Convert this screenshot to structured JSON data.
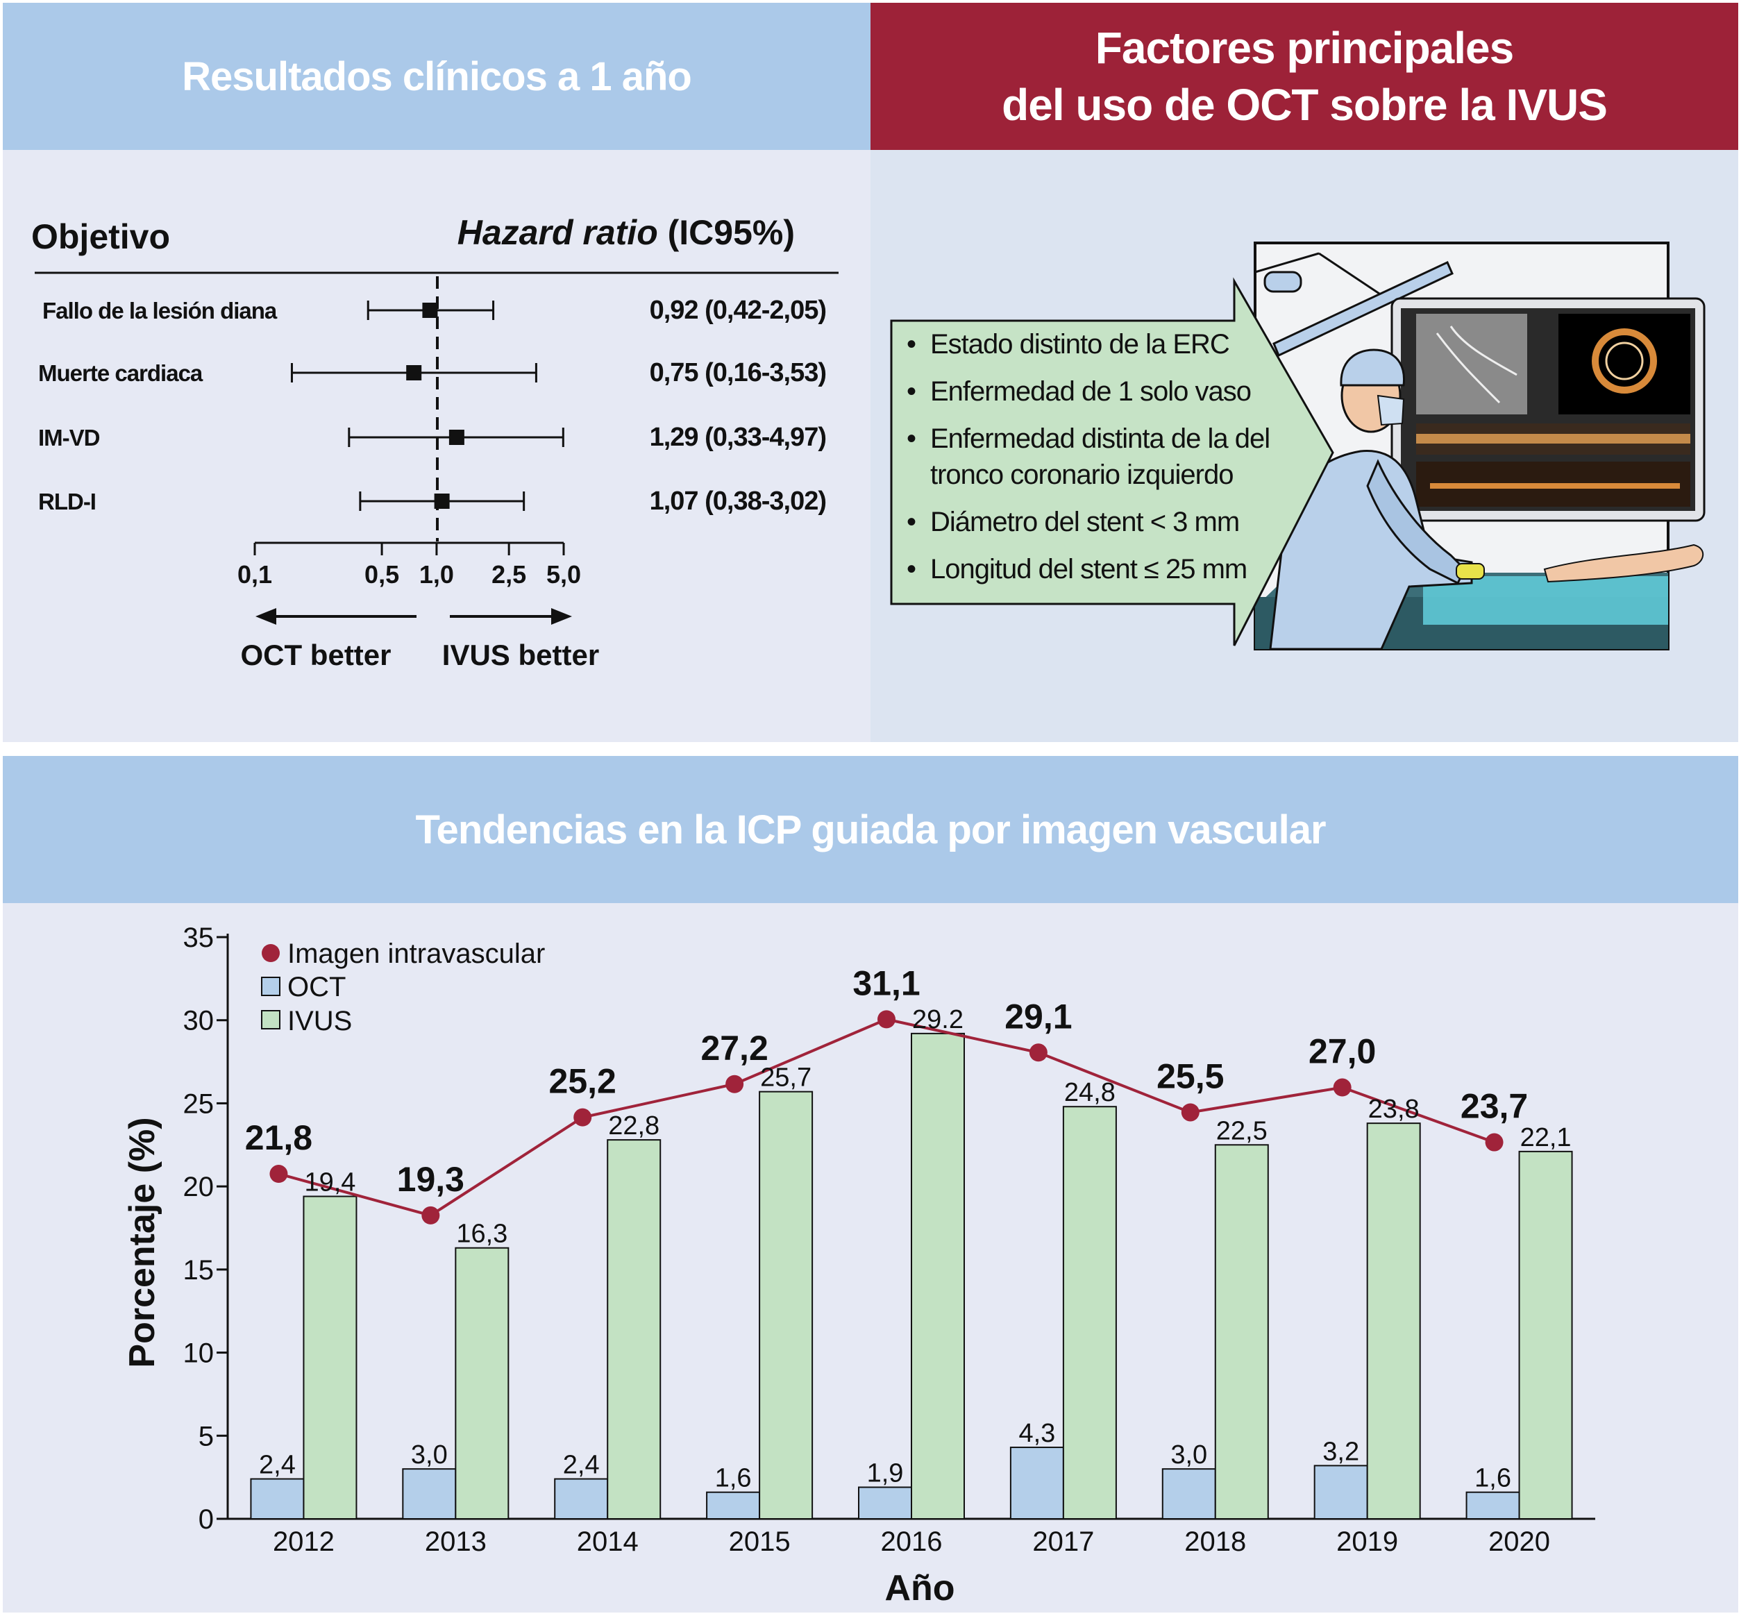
{
  "panels": {
    "top_left_title": "Resultados clínicos a 1 año",
    "top_right_title_line1": "Factores principales",
    "top_right_title_line2": "del uso de OCT sobre la IVUS",
    "bottom_title": "Tendencias en la ICP guiada por imagen vascular"
  },
  "forest": {
    "col_endpoint": "Objetivo",
    "col_hr_italic": "Hazard ratio",
    "col_hr_rest": " (IC95%)",
    "rows": [
      {
        "label": "Fallo de la lesión diana",
        "hr": 0.92,
        "lo": 0.42,
        "hi": 2.05,
        "text": "0,92 (0,42-2,05)"
      },
      {
        "label": "Muerte cardiaca",
        "hr": 0.75,
        "lo": 0.16,
        "hi": 3.53,
        "text": "0,75 (0,16-3,53)"
      },
      {
        "label": "IM-VD",
        "hr": 1.29,
        "lo": 0.33,
        "hi": 4.97,
        "text": "1,29 (0,33-4,97)"
      },
      {
        "label": "RLD-I",
        "hr": 1.07,
        "lo": 0.38,
        "hi": 3.02,
        "text": "1,07 (0,38-3,02)"
      }
    ],
    "axis_ticks": [
      {
        "value": 0.1,
        "label": "0,1"
      },
      {
        "value": 0.5,
        "label": "0,5"
      },
      {
        "value": 1.0,
        "label": "1,0"
      },
      {
        "value": 2.5,
        "label": "2,5"
      },
      {
        "value": 5.0,
        "label": "5,0"
      }
    ],
    "axis_scale": "log",
    "left_arrow_label": "OCT better",
    "right_arrow_label": "IVUS better"
  },
  "factors": [
    "Estado distinto de la ERC",
    "Enfermedad de 1 solo vaso",
    "Enfermedad distinta de la del tronco coronario izquierdo",
    "Diámetro del stent < 3 mm",
    "Longitud del stent ≤ 25 mm"
  ],
  "chart_data": {
    "type": "bar",
    "categories": [
      "2012",
      "2013",
      "2014",
      "2015",
      "2016",
      "2017",
      "2018",
      "2019",
      "2020"
    ],
    "series": [
      {
        "name": "OCT",
        "type": "bar",
        "color": "#b4cfea",
        "values": [
          2.4,
          3.0,
          2.4,
          1.6,
          1.9,
          4.3,
          3.0,
          3.2,
          1.6
        ],
        "labels": [
          "2,4",
          "3,0",
          "2,4",
          "1,6",
          "1,9",
          "4,3",
          "3,0",
          "3,2",
          "1,6"
        ]
      },
      {
        "name": "IVUS",
        "type": "bar",
        "color": "#c3e2c3",
        "values": [
          19.4,
          16.3,
          22.8,
          25.7,
          29.2,
          24.8,
          22.5,
          23.8,
          22.1
        ],
        "labels": [
          "19,4",
          "16,3",
          "22,8",
          "25,7",
          "29.2",
          "24,8",
          "22,5",
          "23,8",
          "22,1"
        ]
      },
      {
        "name": "Imagen intravascular",
        "type": "line",
        "color": "#a0233a",
        "values": [
          21.8,
          19.3,
          25.2,
          27.2,
          31.1,
          29.1,
          25.5,
          27.0,
          23.7
        ],
        "labels": [
          "21,8",
          "19,3",
          "25,2",
          "27,2",
          "31,1",
          "29,1",
          "25,5",
          "27,0",
          "23,7"
        ]
      }
    ],
    "xlabel": "Año",
    "ylabel": "Porcentaje (%)",
    "ylim": [
      0,
      35
    ],
    "yticks": [
      0,
      5,
      10,
      15,
      20,
      25,
      30,
      35
    ],
    "legend": "top-left",
    "grid": false
  },
  "colors": {
    "header_blue": "#abc9e9",
    "header_red": "#9d2238",
    "panel_bg": "#e6e9f4",
    "panel_bg_right": "#dce4f1",
    "callout_green": "#c6e3c6"
  }
}
